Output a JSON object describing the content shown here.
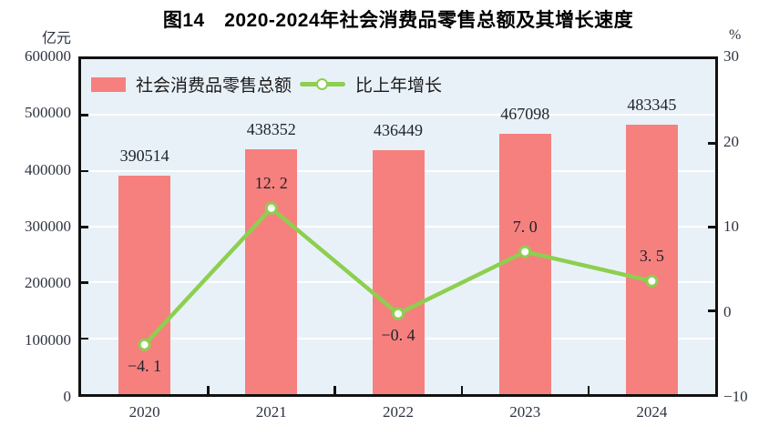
{
  "chart_data": {
    "type": "bar+line",
    "title": "图14　2020-2024年社会消费品零售总额及其增长速度",
    "categories": [
      "2020",
      "2021",
      "2022",
      "2023",
      "2024"
    ],
    "series": [
      {
        "name": "社会消费品零售总额",
        "type": "bar",
        "axis": "left",
        "values": [
          390514,
          438352,
          436449,
          467098,
          483345
        ],
        "labels": [
          "390514",
          "438352",
          "436449",
          "467098",
          "483345"
        ]
      },
      {
        "name": "比上年增长",
        "type": "line",
        "axis": "right",
        "values": [
          -4.1,
          12.2,
          -0.4,
          7.0,
          3.5
        ],
        "labels": [
          "−4. 1",
          "12. 2",
          "−0. 4",
          "7. 0",
          "3. 5"
        ],
        "label_positions": [
          "below",
          "above",
          "below",
          "above",
          "above"
        ]
      }
    ],
    "left_axis": {
      "unit": "亿元",
      "min": 0,
      "max": 600000,
      "tick_step": 100000,
      "tick_labels": [
        "600000",
        "500000",
        "400000",
        "300000",
        "200000",
        "100000",
        "0"
      ]
    },
    "right_axis": {
      "unit": "%",
      "min": -10,
      "max": 30,
      "tick_step": 10,
      "tick_labels": [
        "30",
        "20",
        "10",
        "0",
        "−10"
      ]
    },
    "grid": "horizontal gridlines at left-axis ticks",
    "legend_position": "top-left-inside",
    "colors": {
      "bar": "#F6807E",
      "line": "#8DCF4F",
      "marker_fill": "#FFFFFF",
      "plot_bg": "#E9F1F8",
      "gridline": "#FFFFFF",
      "frame": "#111111"
    }
  }
}
